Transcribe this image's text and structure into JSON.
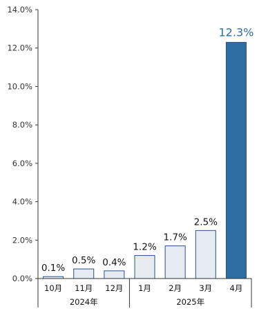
{
  "chart_data": {
    "type": "bar",
    "categories": [
      "10月",
      "11月",
      "12月",
      "1月",
      "2月",
      "3月",
      "4月"
    ],
    "groups": [
      {
        "label": "2024年",
        "categories": [
          "10月",
          "11月",
          "12月"
        ]
      },
      {
        "label": "2025年",
        "categories": [
          "1月",
          "2月",
          "3月",
          "4月"
        ]
      }
    ],
    "values": [
      0.1,
      0.5,
      0.4,
      1.2,
      1.7,
      2.5,
      12.3
    ],
    "data_labels": [
      "0.1%",
      "0.5%",
      "0.4%",
      "1.2%",
      "1.7%",
      "2.5%",
      "12.3%"
    ],
    "highlight_index": 6,
    "ylim": [
      0,
      14
    ],
    "yticks": [
      0,
      2,
      4,
      6,
      8,
      10,
      12,
      14
    ],
    "ytick_labels": [
      "0.0%",
      "2.0%",
      "4.0%",
      "6.0%",
      "8.0%",
      "10.0%",
      "12.0%",
      "14.0%"
    ],
    "grid": false,
    "colors": {
      "bar_fill": "#E6EBF1",
      "bar_stroke": "#2B4F7E",
      "highlight_fill": "#2E6DA4",
      "highlight_label": "#2E6DA4",
      "axis": "#333333"
    }
  }
}
